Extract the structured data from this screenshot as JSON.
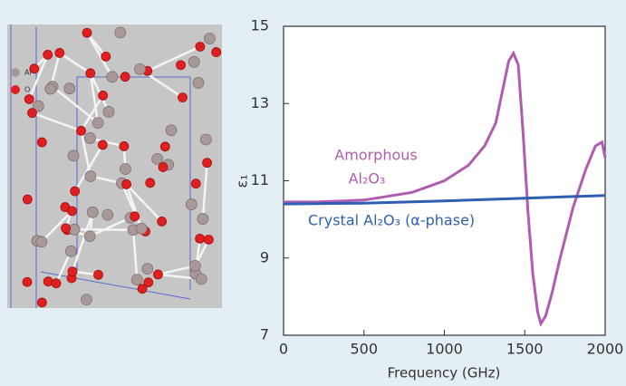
{
  "chart_data": {
    "type": "line",
    "x_label": "Frequency (GHz)",
    "y_label": "ε₁",
    "xlim": [
      0,
      2000
    ],
    "xticks": [
      0,
      500,
      1000,
      1500,
      2000
    ],
    "ylim": [
      7,
      15
    ],
    "yticks": [
      7,
      9,
      11,
      13,
      15
    ],
    "annotations": [
      "Amorphous",
      "Al₂O₃",
      "Crystal Al₂O₃ (α-phase)"
    ],
    "image_labels": [
      "Al",
      "O"
    ],
    "series": [
      {
        "color": "#b05cb0",
        "x": [
          0,
          200,
          500,
          800,
          1000,
          1150,
          1250,
          1320,
          1360,
          1400,
          1430,
          1460,
          1490,
          1520,
          1550,
          1580,
          1600,
          1630,
          1670,
          1720,
          1800,
          1880,
          1940,
          1980,
          2000
        ],
        "values": [
          10.45,
          10.45,
          10.5,
          10.7,
          11.0,
          11.4,
          11.9,
          12.5,
          13.3,
          14.1,
          14.3,
          14.0,
          12.2,
          10.2,
          8.6,
          7.6,
          7.3,
          7.5,
          8.1,
          9.0,
          10.3,
          11.3,
          11.9,
          12.0,
          11.6
        ]
      },
      {
        "color": "#2e5fb0",
        "x": [
          0,
          500,
          1000,
          1500,
          2000
        ],
        "values": [
          10.4,
          10.42,
          10.48,
          10.55,
          10.62
        ]
      }
    ]
  }
}
